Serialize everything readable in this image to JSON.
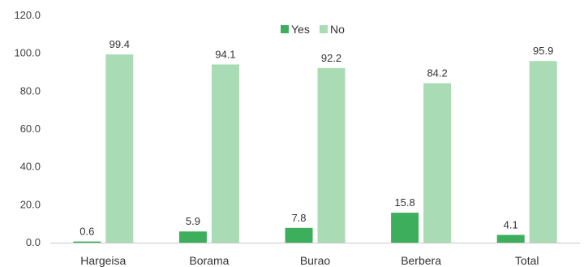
{
  "chart_data": {
    "type": "bar",
    "categories": [
      "Hargeisa",
      "Borama",
      "Burao",
      "Berbera",
      "Total"
    ],
    "series": [
      {
        "name": "Yes",
        "values": [
          0.6,
          5.9,
          7.8,
          15.8,
          4.1
        ],
        "color": "#3dae5b"
      },
      {
        "name": "No",
        "values": [
          99.4,
          94.1,
          92.2,
          84.2,
          95.9
        ],
        "color": "#a9dbb4"
      }
    ],
    "data_labels": [
      [
        "0.6",
        "5.9",
        "7.8",
        "15.8",
        "4.1"
      ],
      [
        "99.4",
        "94.1",
        "92.2",
        "84.2",
        "95.9"
      ]
    ],
    "ylim": [
      0,
      120
    ],
    "yticks": [
      "0.0",
      "20.0",
      "40.0",
      "60.0",
      "80.0",
      "100.0",
      "120.0"
    ],
    "legend_position": "top-center",
    "grid": false,
    "title": "",
    "xlabel": "",
    "ylabel": ""
  }
}
